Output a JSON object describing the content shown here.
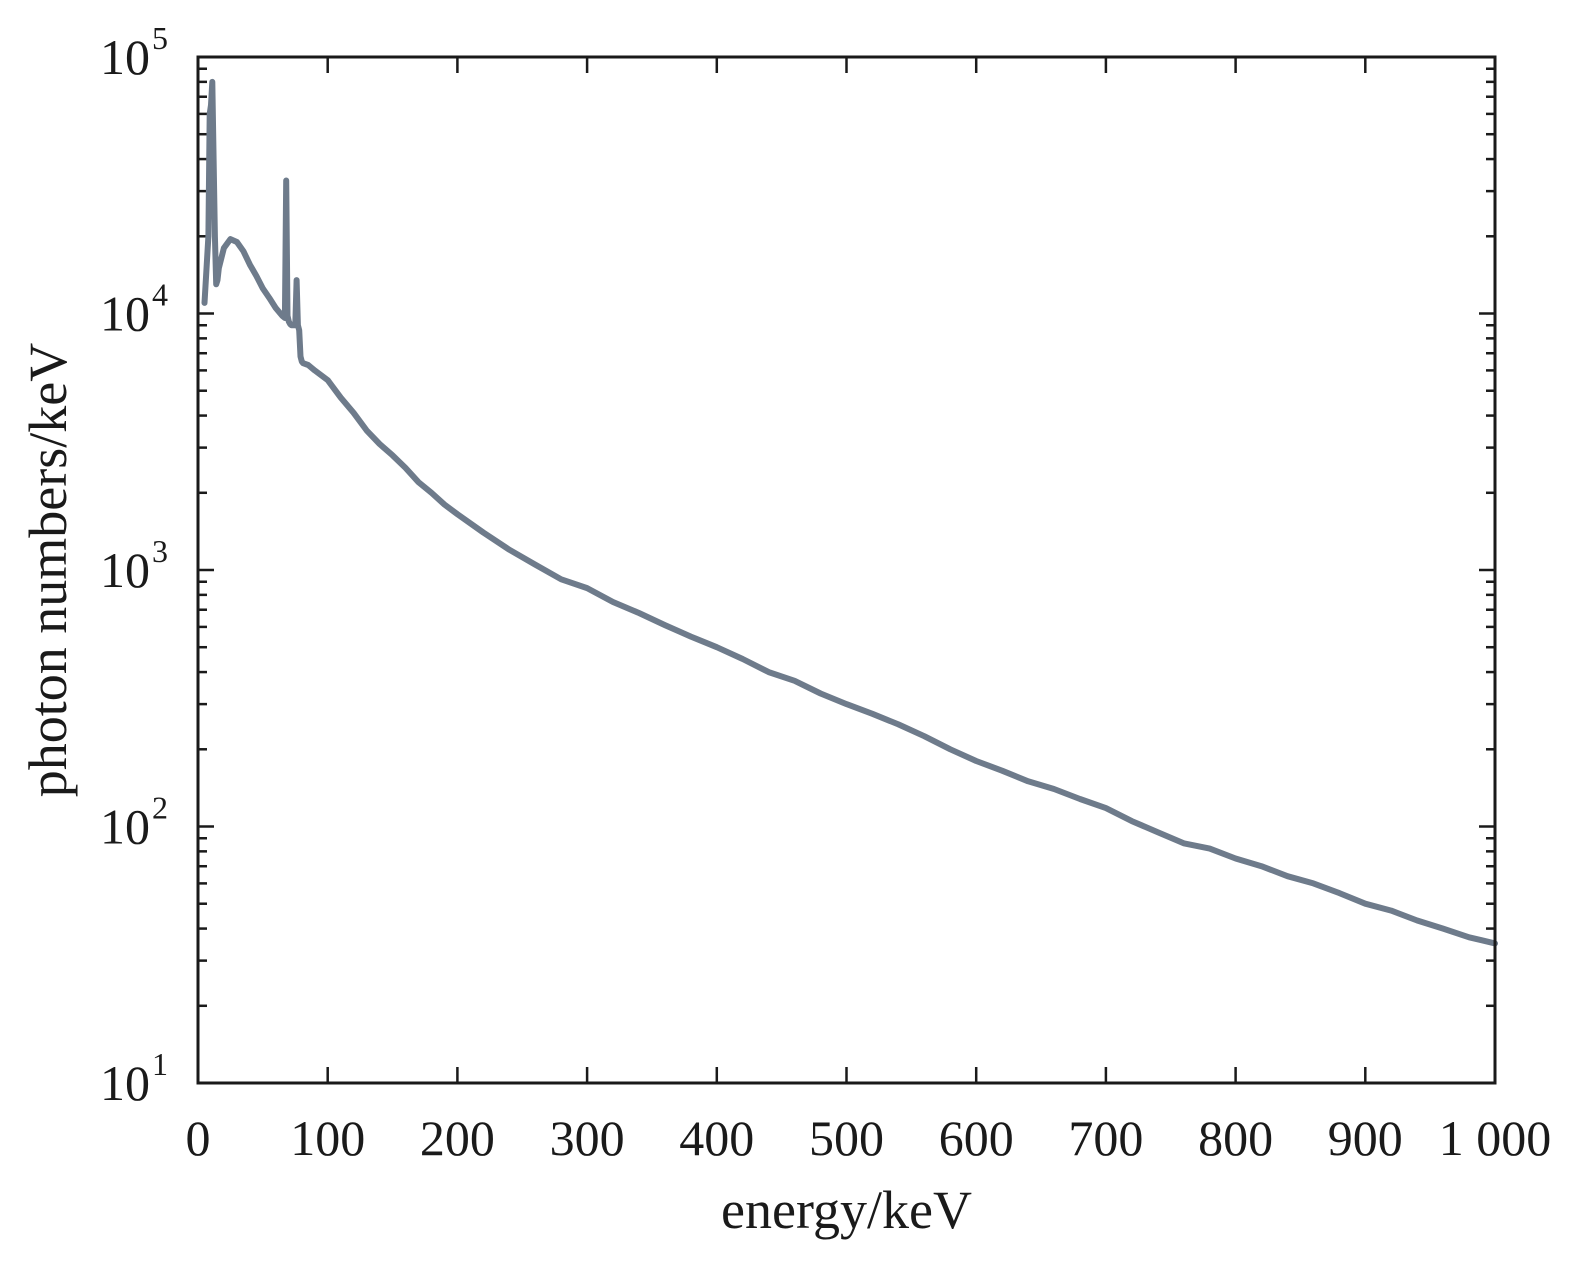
{
  "chart_data": {
    "type": "line",
    "title": "",
    "xlabel": "energy/keV",
    "ylabel": "photon numbers/keV",
    "xlim": [
      0,
      1000
    ],
    "ylim": [
      10,
      100000
    ],
    "yscale": "log",
    "grid": false,
    "x_ticks": [
      {
        "value": 0,
        "label": "0"
      },
      {
        "value": 100,
        "label": "100"
      },
      {
        "value": 200,
        "label": "200"
      },
      {
        "value": 300,
        "label": "300"
      },
      {
        "value": 400,
        "label": "400"
      },
      {
        "value": 500,
        "label": "500"
      },
      {
        "value": 600,
        "label": "600"
      },
      {
        "value": 700,
        "label": "700"
      },
      {
        "value": 800,
        "label": "800"
      },
      {
        "value": 900,
        "label": "900"
      },
      {
        "value": 1000,
        "label": "1 000"
      }
    ],
    "y_ticks": [
      {
        "value": 10,
        "base": "10",
        "exp": "1"
      },
      {
        "value": 100,
        "base": "10",
        "exp": "2"
      },
      {
        "value": 1000,
        "base": "10",
        "exp": "3"
      },
      {
        "value": 10000,
        "base": "10",
        "exp": "4"
      },
      {
        "value": 100000,
        "base": "10",
        "exp": "5"
      }
    ],
    "line_color": "#6e7b8b",
    "series": [
      {
        "x": [
          5,
          8,
          9,
          10,
          11,
          12,
          13,
          14,
          15,
          16,
          20,
          25,
          30,
          35,
          40,
          45,
          50,
          55,
          60,
          65,
          67,
          68,
          69,
          70,
          71,
          72,
          75,
          76,
          77,
          78,
          79,
          80,
          81,
          85,
          90,
          100,
          110,
          120,
          130,
          140,
          150,
          160,
          170,
          180,
          190,
          200,
          220,
          240,
          260,
          280,
          300,
          320,
          340,
          360,
          380,
          400,
          420,
          440,
          460,
          480,
          500,
          520,
          540,
          560,
          580,
          600,
          620,
          640,
          660,
          680,
          700,
          720,
          740,
          760,
          780,
          800,
          820,
          840,
          860,
          880,
          900,
          920,
          940,
          960,
          980,
          990,
          1000
        ],
        "y": [
          11000,
          20000,
          60000,
          65000,
          80000,
          40000,
          20000,
          13000,
          13500,
          15000,
          18000,
          19500,
          19000,
          17500,
          15500,
          14000,
          12500,
          11500,
          10500,
          9800,
          9600,
          33000,
          9800,
          9300,
          9100,
          9000,
          9000,
          13500,
          9000,
          8600,
          6800,
          6500,
          6400,
          6300,
          6000,
          5500,
          4700,
          4100,
          3500,
          3100,
          2800,
          2500,
          2200,
          2000,
          1800,
          1650,
          1400,
          1200,
          1050,
          920,
          850,
          750,
          680,
          610,
          550,
          500,
          450,
          400,
          370,
          330,
          300,
          275,
          250,
          225,
          200,
          180,
          165,
          150,
          140,
          128,
          118,
          105,
          95,
          86,
          82,
          75,
          70,
          64,
          60,
          55,
          50,
          47,
          43,
          40,
          37,
          36,
          35
        ]
      }
    ]
  }
}
